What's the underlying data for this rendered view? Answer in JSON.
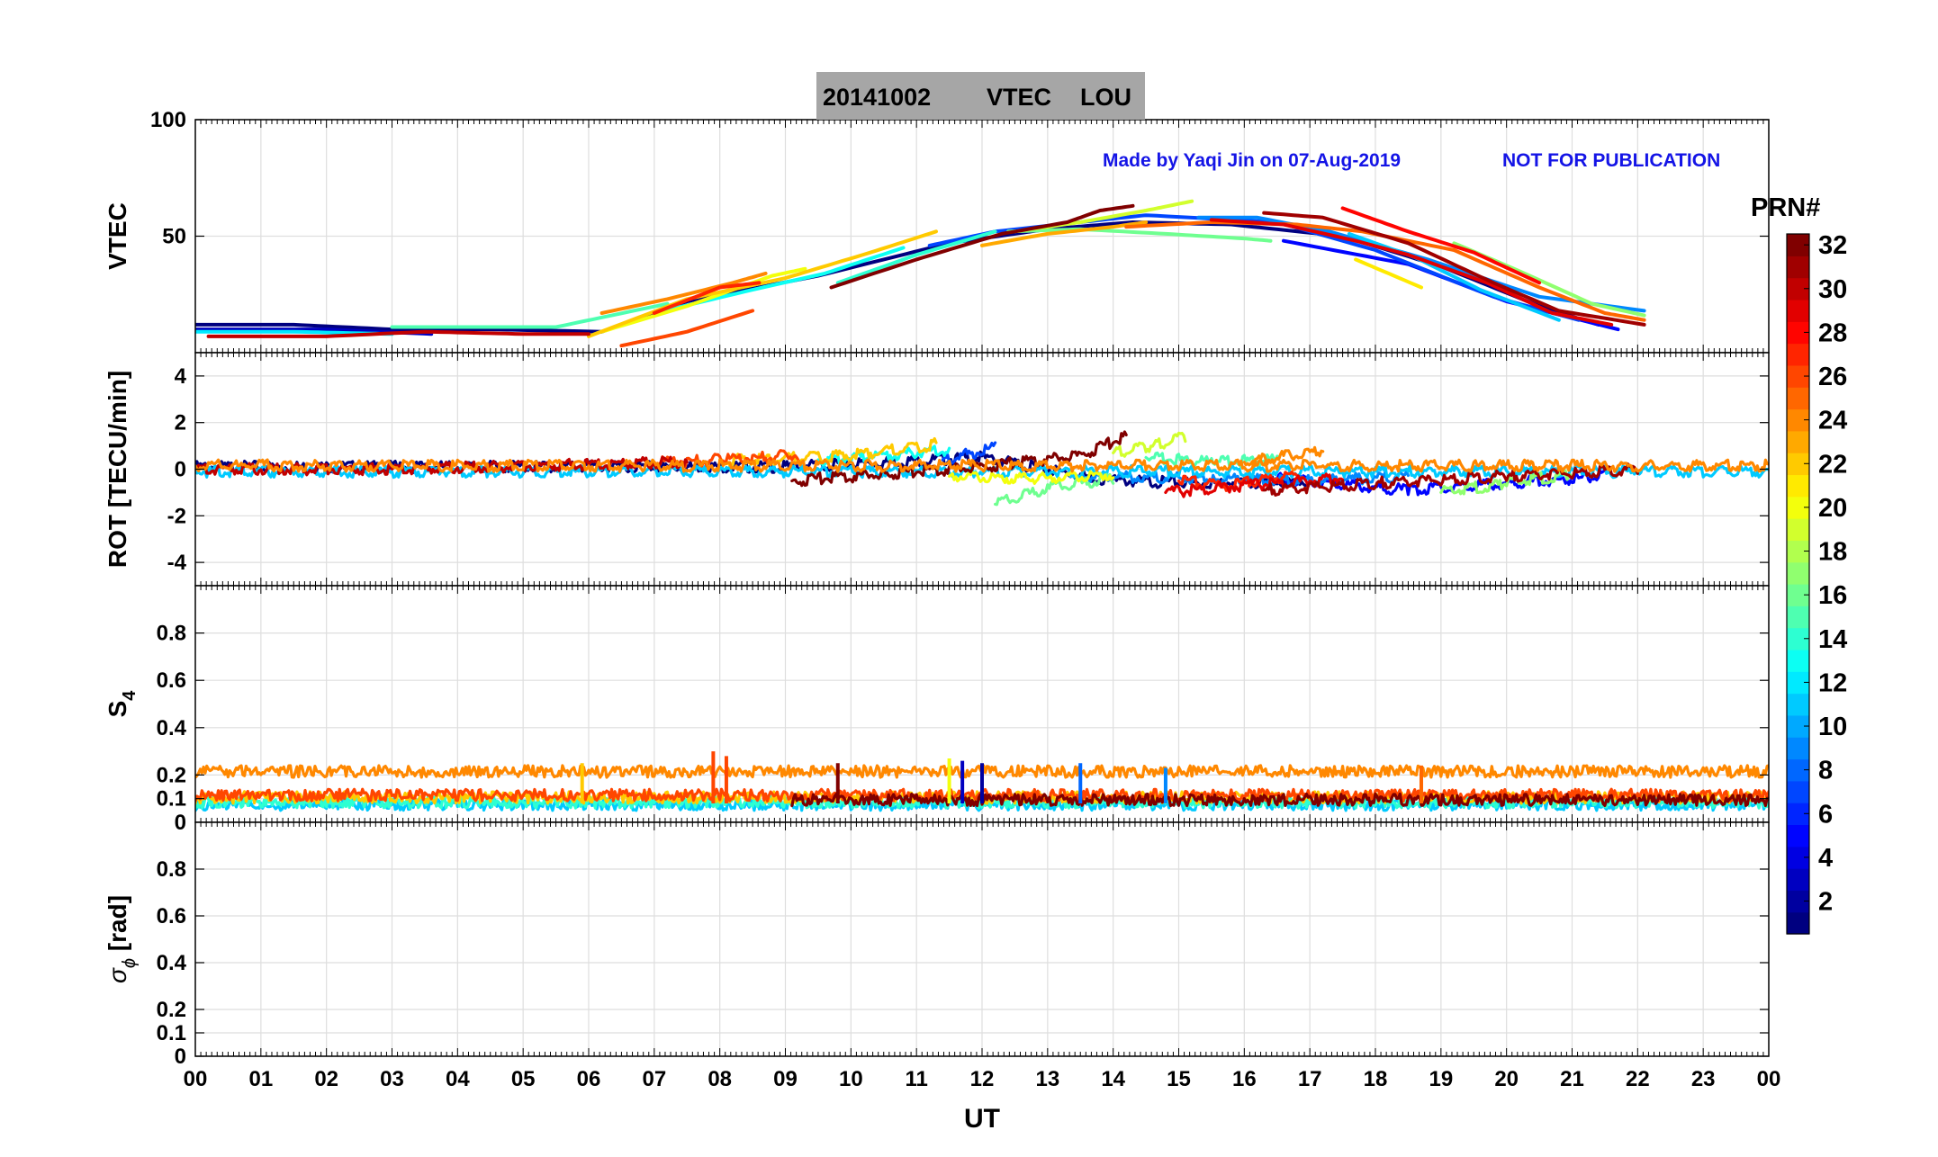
{
  "title": {
    "date": "20141002",
    "quantity": "VTEC",
    "station": "LOU",
    "background": "#a6a6a6"
  },
  "watermark": {
    "credit": "Made by Yaqi Jin on 07-Aug-2019",
    "disclaimer": "NOT FOR PUBLICATION",
    "color": "#1414e6"
  },
  "x_axis": {
    "label": "UT",
    "range": [
      0,
      24
    ],
    "tick_labels": [
      "00",
      "01",
      "02",
      "03",
      "04",
      "05",
      "06",
      "07",
      "08",
      "09",
      "10",
      "11",
      "12",
      "13",
      "14",
      "15",
      "16",
      "17",
      "18",
      "19",
      "20",
      "21",
      "22",
      "23",
      "00"
    ]
  },
  "colorbar": {
    "title": "PRN#",
    "range": [
      1,
      32
    ],
    "tick_labels": [
      "2",
      "4",
      "6",
      "8",
      "10",
      "12",
      "14",
      "16",
      "18",
      "20",
      "22",
      "24",
      "26",
      "28",
      "30",
      "32"
    ],
    "colormap": "jet"
  },
  "chart_data": [
    {
      "type": "line",
      "panel": "vtec",
      "ylabel": "VTEC",
      "ylim": [
        0,
        100
      ],
      "ytick_labels": [
        "50",
        "100"
      ],
      "xlim": [
        0,
        24
      ],
      "grid": true,
      "series": [
        {
          "prn": 1,
          "x": [
            0,
            1.5,
            3,
            4.5,
            6.2,
            7.5,
            9.5,
            11.5,
            13,
            14.3,
            15.8,
            17.5,
            19,
            20.5,
            21.4
          ],
          "y": [
            12,
            12,
            10,
            10,
            9,
            22,
            33,
            47,
            53,
            56,
            55,
            50,
            37,
            20,
            12
          ]
        },
        {
          "prn": 3,
          "x": [
            0,
            2,
            3.6
          ],
          "y": [
            10,
            10,
            8
          ]
        },
        {
          "prn": 5,
          "x": [
            16.6,
            18.5,
            20,
            21.7
          ],
          "y": [
            48,
            38,
            22,
            10
          ]
        },
        {
          "prn": 7,
          "x": [
            11.2,
            12.2,
            13.5,
            14.5,
            16.5,
            18,
            19.8,
            21.1
          ],
          "y": [
            46,
            52,
            56,
            59,
            56,
            44,
            24,
            14
          ]
        },
        {
          "prn": 9,
          "x": [
            15.3,
            16.2,
            17.3,
            18.8,
            20.5,
            22.1
          ],
          "y": [
            58,
            58,
            52,
            40,
            24,
            18
          ]
        },
        {
          "prn": 11,
          "x": [
            17.6,
            18.6,
            19.6,
            20.8
          ],
          "y": [
            51,
            41,
            27,
            14
          ]
        },
        {
          "prn": 12,
          "x": [
            0,
            1.5,
            3
          ],
          "y": [
            9,
            9,
            8
          ]
        },
        {
          "prn": 13,
          "x": [
            7,
            8.5,
            9.6,
            10.8
          ],
          "y": [
            17,
            27,
            34,
            45
          ]
        },
        {
          "prn": 14,
          "x": [
            9.8,
            11,
            12.2
          ],
          "y": [
            30,
            42,
            52
          ]
        },
        {
          "prn": 15,
          "x": [
            3,
            5.5,
            7.2
          ],
          "y": [
            11,
            11,
            21
          ]
        },
        {
          "prn": 16,
          "x": [
            12.4,
            13.5,
            14.8,
            16,
            16.4
          ],
          "y": [
            52,
            53,
            51,
            49,
            48
          ]
        },
        {
          "prn": 17,
          "x": [
            19.2,
            20.2,
            21.3,
            22.1
          ],
          "y": [
            47,
            35,
            21,
            16
          ]
        },
        {
          "prn": 19,
          "x": [
            12.5,
            13.5,
            14.5,
            15.2
          ],
          "y": [
            52,
            56,
            61,
            65
          ]
        },
        {
          "prn": 20,
          "x": [
            6.2,
            7.5,
            8.8,
            9.3
          ],
          "y": [
            9,
            20,
            33,
            36
          ]
        },
        {
          "prn": 21,
          "x": [
            17.7,
            18.7
          ],
          "y": [
            40,
            28
          ]
        },
        {
          "prn": 22,
          "x": [
            6,
            7.5,
            9,
            10.3,
            11.3
          ],
          "y": [
            7,
            23,
            32,
            43,
            52
          ]
        },
        {
          "prn": 23,
          "x": [
            12,
            13,
            14,
            14.5
          ],
          "y": [
            46,
            51,
            54,
            56
          ]
        },
        {
          "prn": 24,
          "x": [
            6.2,
            7.2,
            8.2,
            8.7
          ],
          "y": [
            17,
            23,
            30,
            34
          ]
        },
        {
          "prn": 25,
          "x": [
            14.2,
            15.5,
            16.8,
            17.8,
            19.2,
            20.5,
            21.5,
            22.1
          ],
          "y": [
            54,
            56,
            55,
            52,
            44,
            28,
            17,
            14
          ]
        },
        {
          "prn": 26,
          "x": [
            6.5,
            7.5,
            8.5
          ],
          "y": [
            3,
            9,
            18
          ]
        },
        {
          "prn": 27,
          "x": [
            7,
            8,
            8.6
          ],
          "y": [
            17,
            28,
            30
          ]
        },
        {
          "prn": 28,
          "x": [
            17.5,
            18.5,
            19.5,
            20.5
          ],
          "y": [
            62,
            52,
            43,
            30
          ]
        },
        {
          "prn": 29,
          "x": [
            15.5,
            16.6,
            17.7,
            18.5,
            19.7,
            20.7,
            21.6
          ],
          "y": [
            57,
            55,
            48,
            42,
            30,
            17,
            12
          ]
        },
        {
          "prn": 30,
          "x": [
            0.2,
            2,
            3.5,
            5,
            6
          ],
          "y": [
            7,
            7,
            9,
            8,
            8
          ]
        },
        {
          "prn": 31,
          "x": [
            16.3,
            17.2,
            18.5,
            19.8,
            20.8,
            22.1
          ],
          "y": [
            60,
            58,
            47,
            30,
            18,
            12
          ]
        },
        {
          "prn": 32,
          "x": [
            9.7,
            11,
            12.3,
            13.3,
            13.8,
            14.3
          ],
          "y": [
            28,
            40,
            51,
            56,
            61,
            63
          ]
        }
      ]
    },
    {
      "type": "line",
      "panel": "rot",
      "ylabel": "ROT [TECU/min]",
      "ylim": [
        -5,
        5
      ],
      "ytick_labels": [
        "-4",
        "-2",
        "0",
        "2",
        "4"
      ],
      "xlim": [
        0,
        24
      ],
      "grid": true,
      "series": [
        {
          "prn": 1,
          "x": [
            0,
            6,
            9,
            12,
            14,
            15.5,
            17
          ],
          "y": [
            0.1,
            0.1,
            0.1,
            0.5,
            -0.5,
            -0.6,
            -0.5
          ]
        },
        {
          "prn": 5,
          "x": [
            16.5,
            18.5,
            21.5
          ],
          "y": [
            -0.4,
            -0.9,
            -0.3
          ]
        },
        {
          "prn": 7,
          "x": [
            11.4,
            12.2
          ],
          "y": [
            0.4,
            0.9
          ]
        },
        {
          "prn": 9,
          "x": [
            13.5,
            15.5,
            17,
            18.5
          ],
          "y": [
            -0.3,
            -0.4,
            -0.5,
            -0.3
          ]
        },
        {
          "prn": 11,
          "x": [
            0,
            24
          ],
          "y": [
            -0.1,
            -0.1
          ]
        },
        {
          "prn": 13,
          "x": [
            9.5,
            11.5
          ],
          "y": [
            0.4,
            0.8
          ]
        },
        {
          "prn": 15,
          "x": [
            14.5,
            15.5,
            16.5
          ],
          "y": [
            0.5,
            0.3,
            0.4
          ]
        },
        {
          "prn": 16,
          "x": [
            12.2,
            13,
            14
          ],
          "y": [
            -1.5,
            -0.8,
            -0.4
          ]
        },
        {
          "prn": 17,
          "x": [
            19,
            20,
            21
          ],
          "y": [
            -1.0,
            -0.6,
            -0.2
          ]
        },
        {
          "prn": 19,
          "x": [
            14,
            14.6,
            15.1
          ],
          "y": [
            0.7,
            1.0,
            1.4
          ]
        },
        {
          "prn": 20,
          "x": [
            11.5,
            13,
            14
          ],
          "y": [
            -0.3,
            -0.4,
            -0.2
          ]
        },
        {
          "prn": 22,
          "x": [
            8,
            9.5,
            11,
            11.3
          ],
          "y": [
            0.4,
            0.5,
            0.9,
            1.1
          ]
        },
        {
          "prn": 24,
          "x": [
            16,
            17.2
          ],
          "y": [
            0.3,
            0.8
          ]
        },
        {
          "prn": 26,
          "x": [
            7,
            8,
            9.2
          ],
          "y": [
            0.3,
            0.4,
            0.6
          ]
        },
        {
          "prn": 27,
          "x": [
            15,
            15.8,
            16.8
          ],
          "y": [
            -0.5,
            -0.7,
            -0.2
          ]
        },
        {
          "prn": 29,
          "x": [
            14.8,
            16,
            17.5
          ],
          "y": [
            -1.0,
            -0.7,
            -0.4
          ]
        },
        {
          "prn": 30,
          "x": [
            0,
            3,
            6,
            7.5
          ],
          "y": [
            0,
            0,
            0.2,
            0.3
          ]
        },
        {
          "prn": 31,
          "x": [
            16.3,
            18,
            20,
            22
          ],
          "y": [
            -0.9,
            -0.6,
            -0.3,
            0
          ]
        },
        {
          "prn": 32,
          "x": [
            9.1,
            10.5,
            12,
            13.5,
            14.2
          ],
          "y": [
            -0.5,
            -0.2,
            0.1,
            0.6,
            1.4
          ]
        },
        {
          "prn": 24,
          "x": [
            0,
            24
          ],
          "y": [
            0.15,
            0.15
          ]
        }
      ]
    },
    {
      "type": "line",
      "panel": "s4",
      "ylabel": "S4",
      "ylim": [
        0,
        1
      ],
      "ytick_labels": [
        "0",
        "0.1",
        "0.2",
        "0.4",
        "0.6",
        "0.8"
      ],
      "xlim": [
        0,
        24
      ],
      "grid": true,
      "threshold": 0.19,
      "series": [
        {
          "prn": 11,
          "x": [
            0,
            24
          ],
          "y": [
            0.05,
            0.05
          ]
        },
        {
          "prn": 14,
          "x": [
            0,
            24
          ],
          "y": [
            0.06,
            0.06
          ]
        },
        {
          "prn": 22,
          "x": [
            0,
            24
          ],
          "y": [
            0.08,
            0.08
          ]
        },
        {
          "prn": 26,
          "x": [
            0,
            24
          ],
          "y": [
            0.09,
            0.09
          ]
        },
        {
          "prn": 32,
          "x": [
            9.1,
            24
          ],
          "y": [
            0.07,
            0.07
          ]
        },
        {
          "prn": 24,
          "x": [
            0,
            24
          ],
          "y": [
            0.19,
            0.19
          ]
        }
      ],
      "spikes": [
        {
          "prn": 26,
          "x": 7.9,
          "y": 0.3
        },
        {
          "prn": 26,
          "x": 8.1,
          "y": 0.28
        },
        {
          "prn": 22,
          "x": 5.9,
          "y": 0.25
        },
        {
          "prn": 32,
          "x": 9.8,
          "y": 0.25
        },
        {
          "prn": 3,
          "x": 11.7,
          "y": 0.26
        },
        {
          "prn": 2,
          "x": 12,
          "y": 0.25
        },
        {
          "prn": 8,
          "x": 13.5,
          "y": 0.25
        },
        {
          "prn": 20,
          "x": 11.5,
          "y": 0.27
        },
        {
          "prn": 25,
          "x": 18.7,
          "y": 0.24
        },
        {
          "prn": 9,
          "x": 14.8,
          "y": 0.23
        }
      ]
    },
    {
      "type": "line",
      "panel": "sigma_phi",
      "ylabel": "σ ϕ [rad]",
      "ylim": [
        0,
        1
      ],
      "ytick_labels": [
        "0",
        "0.1",
        "0.2",
        "0.4",
        "0.6",
        "0.8"
      ],
      "xlim": [
        0,
        24
      ],
      "grid": true,
      "series": []
    }
  ]
}
